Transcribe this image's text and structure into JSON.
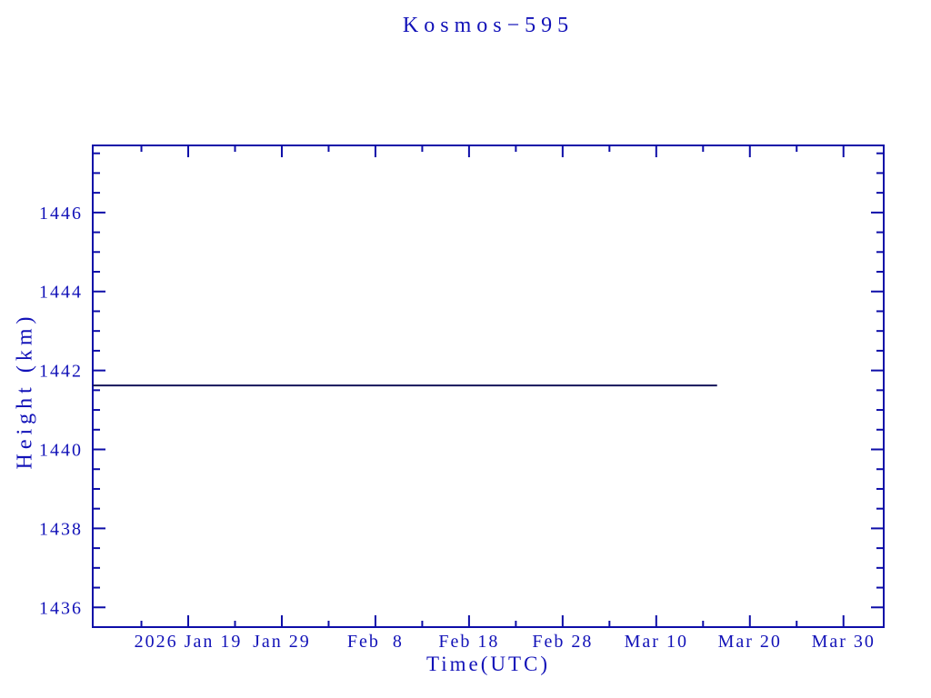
{
  "chart_data": {
    "type": "line",
    "title": "Kosmos−595",
    "xlabel": "Time(UTC)",
    "ylabel": "Height (km)",
    "x_axis": {
      "unit": "date (UTC), value = days from left edge of axis; major ticks every 10 days, minor every 5 days",
      "min": 0,
      "max": 84.5,
      "major_ticks": [
        {
          "pos": 10.2,
          "label": "2026 Jan 19"
        },
        {
          "pos": 20.2,
          "label": "Jan 29"
        },
        {
          "pos": 30.2,
          "label": "Feb  8"
        },
        {
          "pos": 40.2,
          "label": "Feb 18"
        },
        {
          "pos": 50.2,
          "label": "Feb 28"
        },
        {
          "pos": 60.2,
          "label": "Mar 10"
        },
        {
          "pos": 70.2,
          "label": "Mar 20"
        },
        {
          "pos": 80.2,
          "label": "Mar 30"
        }
      ],
      "minor_ticks": [
        5.2,
        15.2,
        25.2,
        35.2,
        45.2,
        55.2,
        65.2,
        75.2
      ]
    },
    "y_axis": {
      "unit": "km",
      "min": 1435.5,
      "max": 1447.7,
      "major_ticks": [
        1436,
        1438,
        1440,
        1442,
        1444,
        1446
      ],
      "minor_step": 0.5
    },
    "series": [
      {
        "name": "Kosmos-595 height",
        "points": [
          {
            "x": 0,
            "y": 1441.62
          },
          {
            "x": 66.7,
            "y": 1441.62
          }
        ],
        "color": "#15155a"
      }
    ],
    "grid": false,
    "legend": null,
    "colors": {
      "text": "#1212b8",
      "axis": "#0d0da8",
      "line": "#15155a",
      "background": "#ffffff"
    }
  }
}
